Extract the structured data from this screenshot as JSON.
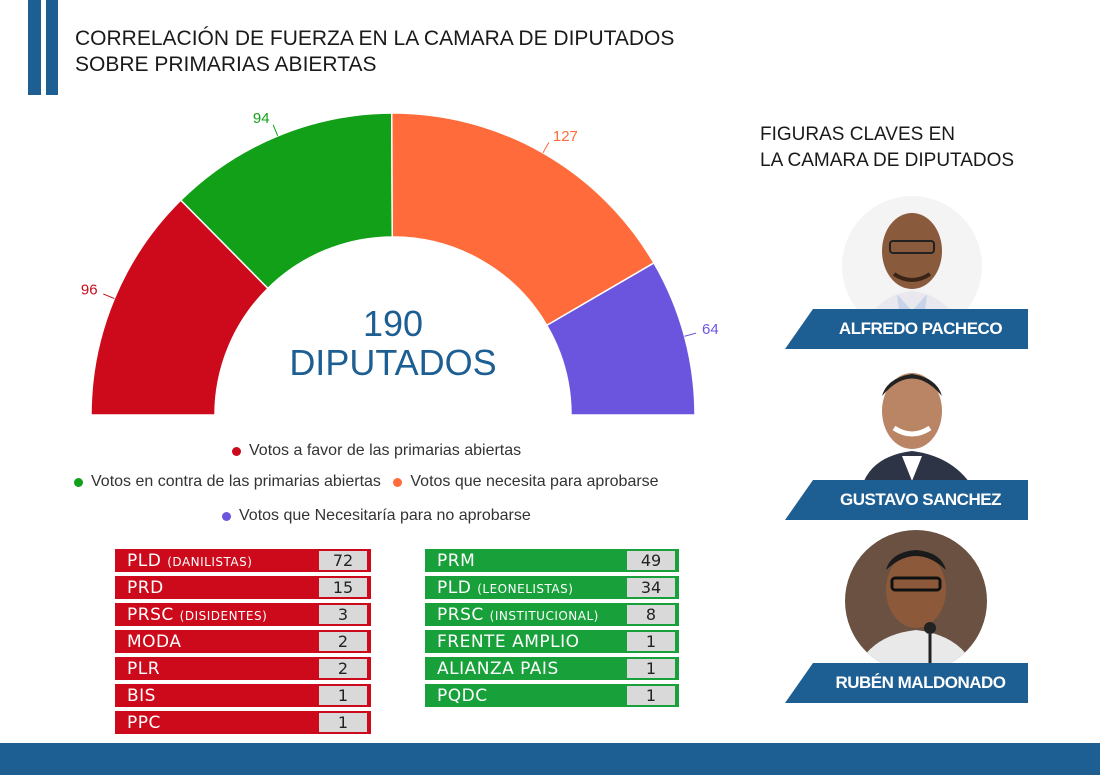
{
  "title": {
    "line1": "CORRELACIÓN DE FUERZA EN LA CAMARA DE DIPUTADOS",
    "line2": "SOBRE PRIMARIAS ABIERTAS"
  },
  "colors": {
    "brand_blue": "#1d5e93",
    "favor_red": "#cc0a1b",
    "contra_green": "#11a018",
    "necesita_orange": "#ff6b3a",
    "no_aprobar_purple": "#6c55de",
    "table_green": "#18a13b"
  },
  "chart_data": {
    "type": "pie",
    "subtype": "semicircle-donut",
    "center_label": {
      "number": "190",
      "unit": "DIPUTADOS"
    },
    "slices": [
      {
        "label": "Votos a favor de las primarias abiertas",
        "value": 96,
        "color": "#cc0a1b"
      },
      {
        "label": "Votos en contra de las primarias abiertas",
        "value": 94,
        "color": "#11a018"
      },
      {
        "label": "Votos que necesita para aprobarse",
        "value": 127,
        "color": "#ff6b3a"
      },
      {
        "label": "Votos que Necesitaría para no aprobarse",
        "value": 64,
        "color": "#6c55de"
      }
    ]
  },
  "legend": [
    {
      "label": "Votos a favor de las primarias abiertas",
      "color": "#cc0a1b"
    },
    {
      "label": "Votos en contra de las primarias abiertas",
      "color": "#11a018"
    },
    {
      "label": "Votos que necesita para aprobarse",
      "color": "#ff6b3a"
    },
    {
      "label": "Votos que Necesitaría para no aprobarse",
      "color": "#6c55de"
    }
  ],
  "table_favor": [
    {
      "name": "PLD",
      "sub": "(DANILISTAS)",
      "value": "72"
    },
    {
      "name": "PRD",
      "sub": "",
      "value": "15"
    },
    {
      "name": "PRSC",
      "sub": "(DISIDENTES)",
      "value": "3"
    },
    {
      "name": "MODA",
      "sub": "",
      "value": "2"
    },
    {
      "name": "PLR",
      "sub": "",
      "value": "2"
    },
    {
      "name": "BIS",
      "sub": "",
      "value": "1"
    },
    {
      "name": "PPC",
      "sub": "",
      "value": "1"
    }
  ],
  "table_contra": [
    {
      "name": "PRM",
      "sub": "",
      "value": "49"
    },
    {
      "name": "PLD",
      "sub": "(LEONELISTAS)",
      "value": "34"
    },
    {
      "name": "PRSC",
      "sub": "(INSTITUCIONAL)",
      "value": "8"
    },
    {
      "name": "FRENTE AMPLIO",
      "sub": "",
      "value": "1"
    },
    {
      "name": "ALIANZA PAIS",
      "sub": "",
      "value": "1"
    },
    {
      "name": "PQDC",
      "sub": "",
      "value": "1"
    }
  ],
  "side": {
    "title_line1": "FIGURAS CLAVES EN",
    "title_line2": "LA CAMARA DE DIPUTADOS",
    "figures": [
      {
        "name": "ALFREDO PACHECO"
      },
      {
        "name": "GUSTAVO SANCHEZ"
      },
      {
        "name": "RUBÉN MALDONADO"
      }
    ]
  }
}
